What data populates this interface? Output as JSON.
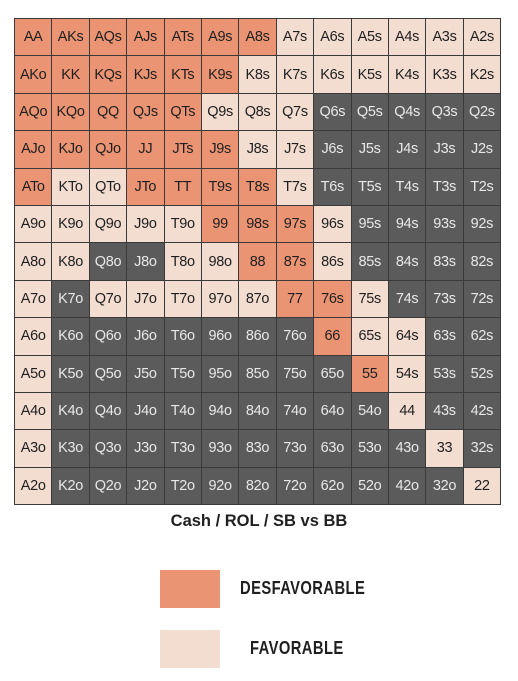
{
  "chart_data": {
    "type": "heatmap",
    "title": "Cash / ROL / SB vs BB",
    "ranks": [
      "A",
      "K",
      "Q",
      "J",
      "T",
      "9",
      "8",
      "7",
      "6",
      "5",
      "4",
      "3",
      "2"
    ],
    "cell_labels": [
      [
        "AA",
        "AKs",
        "AQs",
        "AJs",
        "ATs",
        "A9s",
        "A8s",
        "A7s",
        "A6s",
        "A5s",
        "A4s",
        "A3s",
        "A2s"
      ],
      [
        "AKo",
        "KK",
        "KQs",
        "KJs",
        "KTs",
        "K9s",
        "K8s",
        "K7s",
        "K6s",
        "K5s",
        "K4s",
        "K3s",
        "K2s"
      ],
      [
        "AQo",
        "KQo",
        "QQ",
        "QJs",
        "QTs",
        "Q9s",
        "Q8s",
        "Q7s",
        "Q6s",
        "Q5s",
        "Q4s",
        "Q3s",
        "Q2s"
      ],
      [
        "AJo",
        "KJo",
        "QJo",
        "JJ",
        "JTs",
        "J9s",
        "J8s",
        "J7s",
        "J6s",
        "J5s",
        "J4s",
        "J3s",
        "J2s"
      ],
      [
        "ATo",
        "KTo",
        "QTo",
        "JTo",
        "TT",
        "T9s",
        "T8s",
        "T7s",
        "T6s",
        "T5s",
        "T4s",
        "T3s",
        "T2s"
      ],
      [
        "A9o",
        "K9o",
        "Q9o",
        "J9o",
        "T9o",
        "99",
        "98s",
        "97s",
        "96s",
        "95s",
        "94s",
        "93s",
        "92s"
      ],
      [
        "A8o",
        "K8o",
        "Q8o",
        "J8o",
        "T8o",
        "98o",
        "88",
        "87s",
        "86s",
        "85s",
        "84s",
        "83s",
        "82s"
      ],
      [
        "A7o",
        "K7o",
        "Q7o",
        "J7o",
        "T7o",
        "97o",
        "87o",
        "77",
        "76s",
        "75s",
        "74s",
        "73s",
        "72s"
      ],
      [
        "A6o",
        "K6o",
        "Q6o",
        "J6o",
        "T6o",
        "96o",
        "86o",
        "76o",
        "66",
        "65s",
        "64s",
        "63s",
        "62s"
      ],
      [
        "A5o",
        "K5o",
        "Q5o",
        "J5o",
        "T5o",
        "95o",
        "85o",
        "75o",
        "65o",
        "55",
        "54s",
        "53s",
        "52s"
      ],
      [
        "A4o",
        "K4o",
        "Q4o",
        "J4o",
        "T4o",
        "94o",
        "84o",
        "74o",
        "64o",
        "54o",
        "44",
        "43s",
        "42s"
      ],
      [
        "A3o",
        "K3o",
        "Q3o",
        "J3o",
        "T3o",
        "93o",
        "83o",
        "73o",
        "63o",
        "53o",
        "43o",
        "33",
        "32s"
      ],
      [
        "A2o",
        "K2o",
        "Q2o",
        "J2o",
        "T2o",
        "92o",
        "82o",
        "72o",
        "62o",
        "52o",
        "42o",
        "32o",
        "22"
      ]
    ],
    "cell_values": [
      "DDDDDDDFFFFFF",
      "DDDDDDFFFFFFF",
      "DDDDDFFFNNNNN",
      "DDDDDDFFNNNNN",
      "DFFDDDDFNNNNN",
      "FFFFFDDDFNNNN",
      "FFNNFFDDFNNNN",
      "FNFFFFFDDFNNN",
      "FNNNNNNNDFFNN",
      "FNNNNNNNNDFNN",
      "FNNNNNNNNNFNN",
      "FNNNNNNNNNNFN",
      "FNNNNNNNNNNNF"
    ],
    "categories_legend": {
      "D": {
        "label": "DESFAVORABLE",
        "color": "#ea9473"
      },
      "F": {
        "label": "FAVORABLE",
        "color": "#f2ddd0"
      },
      "N": {
        "label": "",
        "color": "#5b5b5b"
      }
    },
    "grid": true
  },
  "legend": {
    "items": [
      {
        "label": "DESFAVORABLE",
        "color": "#ea9473"
      },
      {
        "label": "FAVORABLE",
        "color": "#f2ddd0"
      }
    ]
  },
  "colors": {
    "text_dark": "#1f1f1f",
    "text_on_dark": "#e8e8e8",
    "border": "#3a3a3a"
  }
}
